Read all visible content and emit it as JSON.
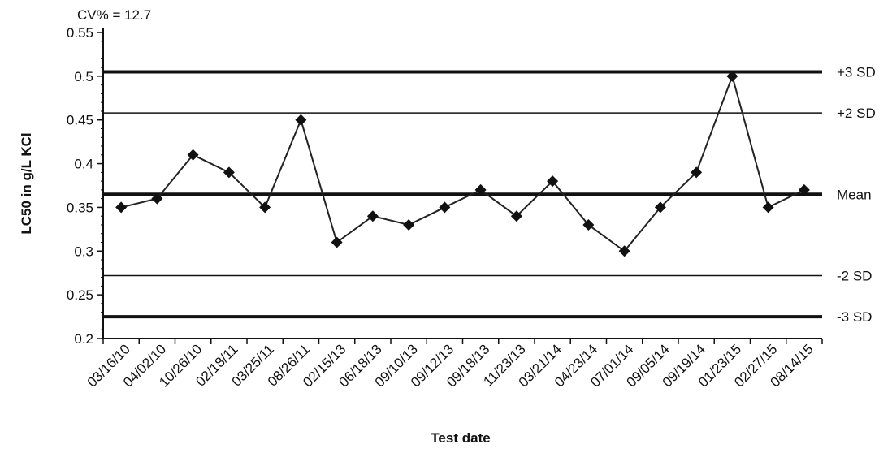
{
  "chart_data": {
    "type": "line",
    "annotation": "CV% = 12.7",
    "xlabel": "Test date",
    "ylabel": "LC50 in g/L KCl",
    "ylim": [
      0.2,
      0.55
    ],
    "yticks": [
      "0.2",
      "0.25",
      "0.3",
      "0.35",
      "0.4",
      "0.45",
      "0.5",
      "0.55"
    ],
    "categories": [
      "03/16/10",
      "04/02/10",
      "10/26/10",
      "02/18/11",
      "03/25/11",
      "08/26/11",
      "02/15/13",
      "06/18/13",
      "09/10/13",
      "09/12/13",
      "09/18/13",
      "11/23/13",
      "03/21/14",
      "04/23/14",
      "07/01/14",
      "09/05/14",
      "09/19/14",
      "01/23/15",
      "02/27/15",
      "08/14/15"
    ],
    "series": [
      {
        "values": [
          0.35,
          0.36,
          0.41,
          0.39,
          0.35,
          0.45,
          0.31,
          0.34,
          0.33,
          0.35,
          0.37,
          0.34,
          0.38,
          0.33,
          0.3,
          0.35,
          0.39,
          0.5,
          0.35,
          0.37
        ]
      }
    ],
    "reference_lines": [
      {
        "label": "+3 SD",
        "value": 0.505
      },
      {
        "label": "+2 SD",
        "value": 0.458
      },
      {
        "label": "Mean",
        "value": 0.365
      },
      {
        "label": "-2 SD",
        "value": 0.272
      },
      {
        "label": "-3 SD",
        "value": 0.225
      }
    ],
    "grid": false,
    "legend": "none",
    "colors": {
      "line": "#222222",
      "marker": "#111111",
      "reference": "#111111"
    }
  }
}
